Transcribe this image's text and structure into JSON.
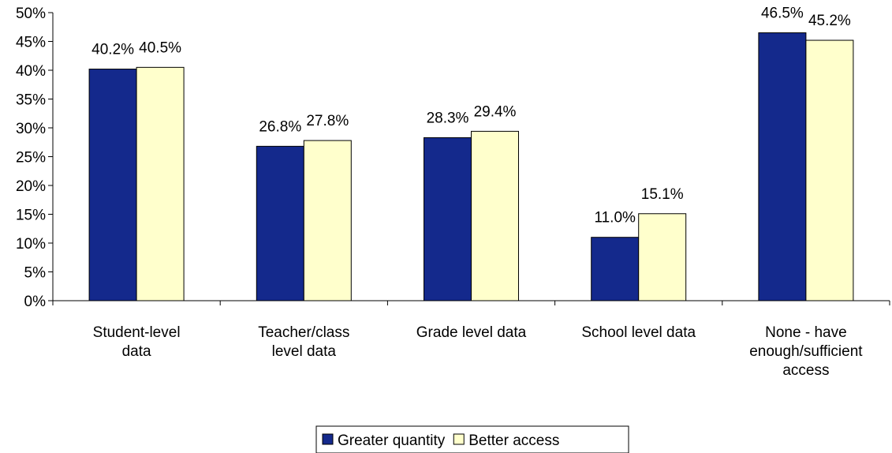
{
  "chart_data": {
    "type": "bar",
    "categories": [
      "Student-level\ndata",
      "Teacher/class\nlevel data",
      "Grade level data",
      "School level data",
      "None - have\nenough/sufficient\naccess"
    ],
    "series": [
      {
        "name": "Greater quantity",
        "color": "#14298c",
        "values": [
          40.2,
          26.8,
          28.3,
          11.0,
          46.5
        ],
        "value_labels": [
          "40.2%",
          "26.8%",
          "28.3%",
          "11.0%",
          "46.5%"
        ]
      },
      {
        "name": "Better access",
        "color": "#ffffcc",
        "values": [
          40.5,
          27.8,
          29.4,
          15.1,
          45.2
        ],
        "value_labels": [
          "40.5%",
          "27.8%",
          "29.4%",
          "15.1%",
          "45.2%"
        ]
      }
    ],
    "ylim": [
      0,
      50
    ],
    "yticks": [
      {
        "value": 0,
        "label": "0%"
      },
      {
        "value": 5,
        "label": "5%"
      },
      {
        "value": 10,
        "label": "10%"
      },
      {
        "value": 15,
        "label": "15%"
      },
      {
        "value": 20,
        "label": "20%"
      },
      {
        "value": 25,
        "label": "25%"
      },
      {
        "value": 30,
        "label": "30%"
      },
      {
        "value": 35,
        "label": "35%"
      },
      {
        "value": 40,
        "label": "40%"
      },
      {
        "value": 45,
        "label": "45%"
      },
      {
        "value": 50,
        "label": "50%"
      }
    ],
    "legend": "bottom"
  }
}
